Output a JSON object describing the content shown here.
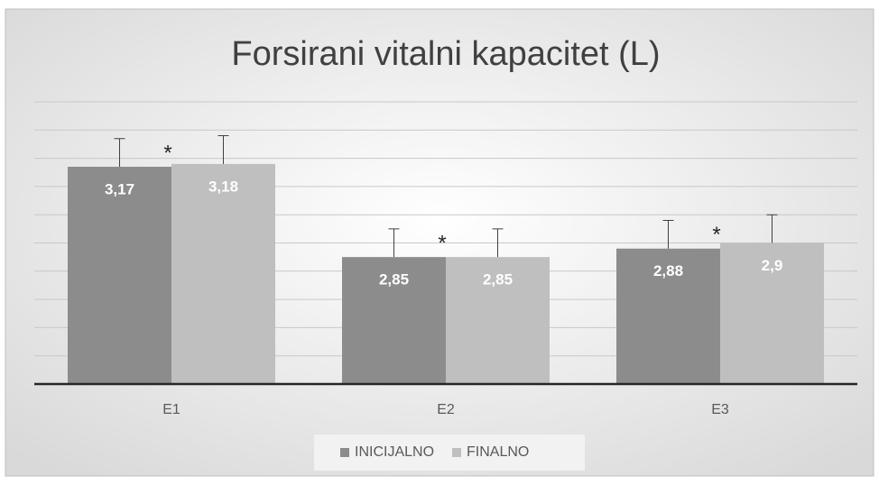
{
  "chart_data": {
    "type": "bar",
    "title": "Forsirani vitalni kapacitet (L)",
    "categories": [
      "E1",
      "E2",
      "E3"
    ],
    "series": [
      {
        "name": "INICIJALNO",
        "color": "#8c8c8c",
        "values": [
          3.17,
          2.85,
          2.88
        ],
        "value_labels": [
          "3,17",
          "2,85",
          "2,88"
        ],
        "errors": [
          0.1,
          0.1,
          0.1
        ]
      },
      {
        "name": "FINALNO",
        "color": "#bfbfbf",
        "values": [
          3.18,
          2.85,
          2.9
        ],
        "value_labels": [
          "3,18",
          "2,85",
          "2,9"
        ],
        "errors": [
          0.1,
          0.1,
          0.1
        ]
      }
    ],
    "annotations": [
      "*",
      "*",
      "*"
    ],
    "ylim": [
      2.4,
      3.4
    ],
    "yticks": [
      2.4,
      2.5,
      2.6,
      2.7,
      2.8,
      2.9,
      3.0,
      3.1,
      3.2,
      3.3,
      3.4
    ],
    "grid": true,
    "legend": "bottom"
  }
}
